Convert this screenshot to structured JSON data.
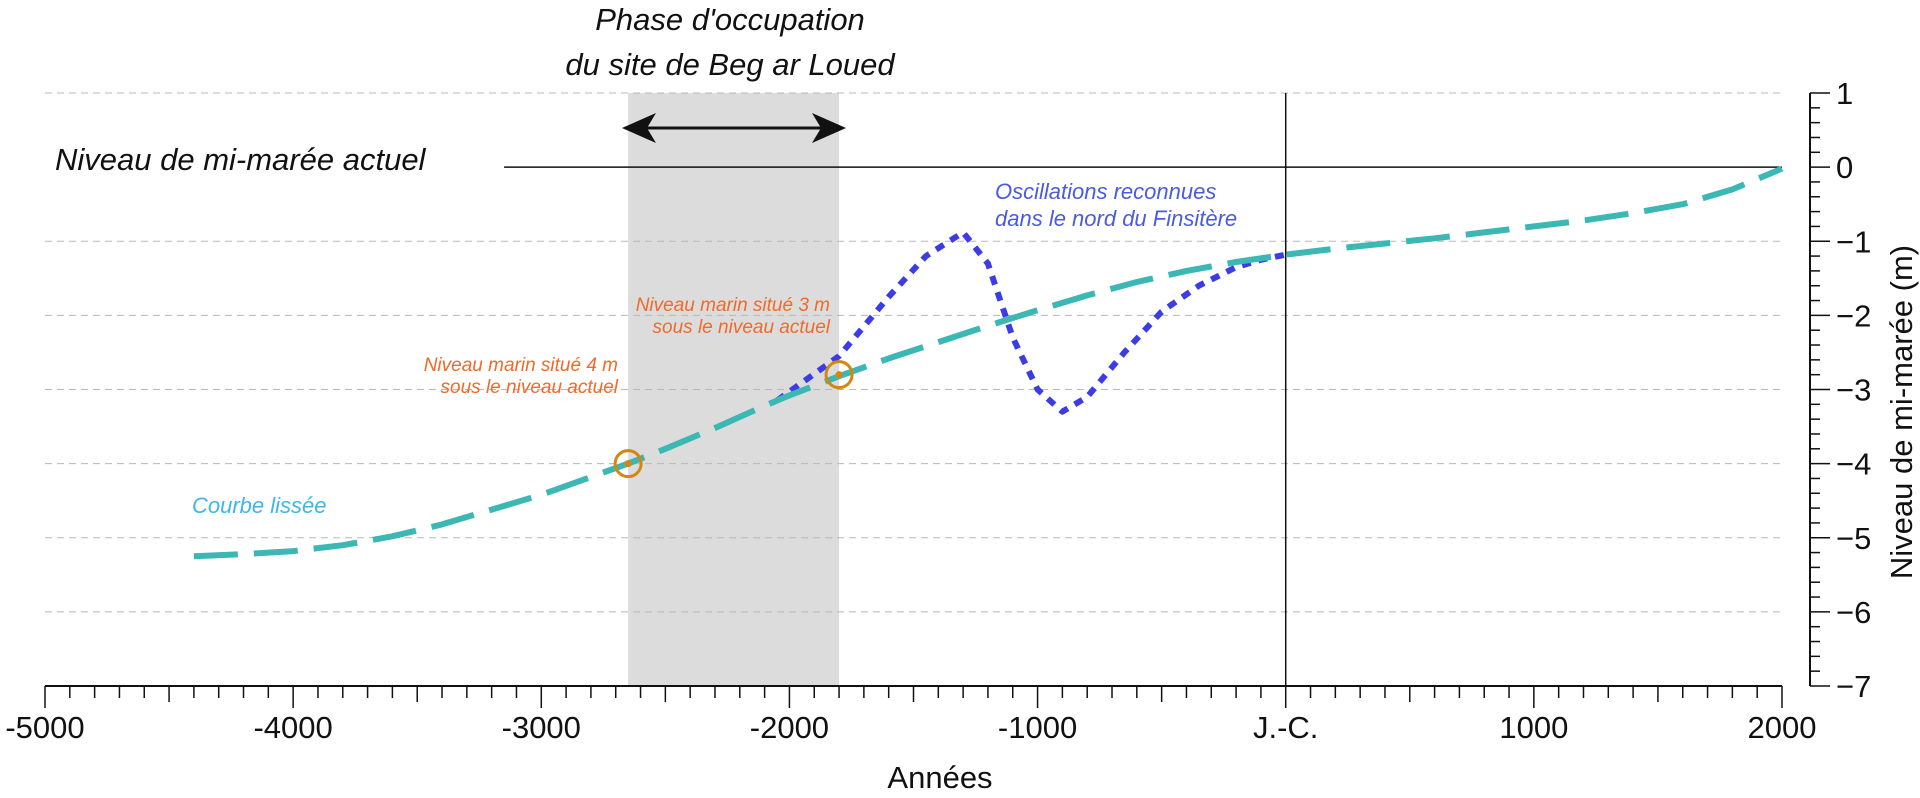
{
  "chart_data": {
    "type": "line",
    "xlabel": "Années",
    "ylabel": "Niveau de mi-marée (m)",
    "xlim": [
      -5000,
      2000
    ],
    "ylim": [
      -7,
      1
    ],
    "x_ticks": [
      -5000,
      -4000,
      -3000,
      -2000,
      -1000,
      0,
      1000,
      2000
    ],
    "x_tick_labels": [
      "-5000",
      "-4000",
      "-3000",
      "-2000",
      "-1000",
      "J.-C.",
      "1000",
      "2000"
    ],
    "y_ticks": [
      1,
      0,
      -1,
      -2,
      -3,
      -4,
      -5,
      -6,
      -7
    ],
    "y_tick_labels": [
      "1",
      "0",
      "−1",
      "−2",
      "−3",
      "−4",
      "−5",
      "−6",
      "−7"
    ],
    "grid": true,
    "colors": {
      "smoothed": "#3cb8b4",
      "oscillation": "#3c3ce6",
      "marker": "#d4860f",
      "annotation_orange": "#f06a2a",
      "annotation_blue": "#4a5be0",
      "annotation_cyan": "#3fb6e6",
      "band": "#dcdcdc"
    },
    "series": [
      {
        "name": "Courbe lissée",
        "style": "dashed",
        "x": [
          -4400,
          -4200,
          -4000,
          -3800,
          -3600,
          -3400,
          -3200,
          -3000,
          -2800,
          -2650,
          -2500,
          -2300,
          -2100,
          -2000,
          -1800,
          -1600,
          -1400,
          -1200,
          -1000,
          -800,
          -600,
          -400,
          -200,
          0,
          200,
          400,
          600,
          800,
          1000,
          1200,
          1400,
          1600,
          1800,
          2000
        ],
        "y": [
          -5.25,
          -5.22,
          -5.18,
          -5.1,
          -4.98,
          -4.82,
          -4.62,
          -4.42,
          -4.18,
          -4.0,
          -3.8,
          -3.52,
          -3.22,
          -3.08,
          -2.82,
          -2.58,
          -2.36,
          -2.14,
          -1.93,
          -1.73,
          -1.55,
          -1.4,
          -1.28,
          -1.18,
          -1.1,
          -1.03,
          -0.96,
          -0.88,
          -0.8,
          -0.72,
          -0.62,
          -0.5,
          -0.3,
          -0.02
        ]
      },
      {
        "name": "Oscillations reconnues dans le nord du Finsitère",
        "style": "dotted",
        "x": [
          -2050,
          -1800,
          -1600,
          -1450,
          -1300,
          -1200,
          -1100,
          -1000,
          -900,
          -800,
          -650,
          -500,
          -350,
          -200,
          -100,
          0
        ],
        "y": [
          -3.15,
          -2.55,
          -1.75,
          -1.2,
          -0.88,
          -1.3,
          -2.3,
          -3.0,
          -3.3,
          -3.1,
          -2.5,
          -1.95,
          -1.6,
          -1.35,
          -1.25,
          -1.18
        ]
      }
    ],
    "points": [
      {
        "x": -2650,
        "y": -4.0
      },
      {
        "x": -1800,
        "y": -2.8
      }
    ],
    "band": {
      "x0": -2650,
      "x1": -1800
    },
    "reference_line": {
      "y": 0,
      "x_start": -3150
    },
    "vertical_line": {
      "x": 0
    },
    "annotations": {
      "phase_line1": "Phase d'occupation",
      "phase_line2": "du site de Beg ar Loued",
      "current_level": "Niveau de mi-marée actuel",
      "oscillation_line1": "Oscillations reconnues",
      "oscillation_line2": "dans le nord du Finsitère",
      "level3_line1": "Niveau marin situé 3 m",
      "level3_line2": "sous le niveau actuel",
      "level4_line1": "Niveau marin situé 4 m",
      "level4_line2": "sous le niveau actuel",
      "smoothed_label": "Courbe lissée"
    }
  }
}
